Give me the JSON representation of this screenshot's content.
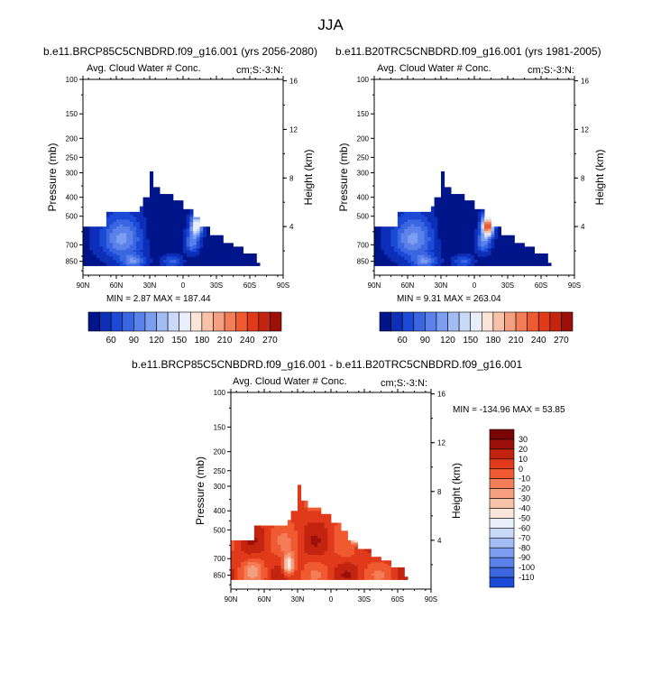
{
  "figure_title": "JJA",
  "palette": {
    "blues": [
      "#00158a",
      "#0d2fb8",
      "#1a4ad6",
      "#3a66e0",
      "#5a82ea",
      "#7d9ef0",
      "#a3bdf4",
      "#c9d9f8",
      "#e8eefa"
    ],
    "reds": [
      "#fbe4d8",
      "#f7c2a8",
      "#f4a080",
      "#f27d56",
      "#ef5a30",
      "#e03a1a",
      "#c22410",
      "#9b1008",
      "#7a0404"
    ]
  },
  "chart_data": [
    {
      "type": "heatmap",
      "id": "left",
      "title": "b.e11.BRCP85C5CNBDRD.f09_g16.001 (yrs 2056-2080)",
      "subtitle_left": "Avg. Cloud Water # Conc.",
      "subtitle_right": "cm;S:-3:N:",
      "xlabel": "",
      "ylabel": "Pressure (mb)",
      "ylabel_right": "Height (km)",
      "x_ticks": [
        "90N",
        "60N",
        "30N",
        "0",
        "30S",
        "60S",
        "90S"
      ],
      "x_range": [
        90,
        -90
      ],
      "y_ticks": [
        100,
        150,
        200,
        250,
        300,
        400,
        500,
        700,
        850
      ],
      "y_range": [
        100,
        1000
      ],
      "y_right_ticks": [
        16,
        12,
        8,
        4
      ],
      "min_label": "MIN =   2.87   MAX =  187.44",
      "colorbar_ticks": [
        60,
        90,
        120,
        150,
        180,
        210,
        240,
        270
      ],
      "colorbar_range": [
        30,
        300
      ]
    },
    {
      "type": "heatmap",
      "id": "right",
      "title": "b.e11.B20TRC5CNBDRD.f09_g16.001 (yrs 1981-2005)",
      "subtitle_left": "Avg. Cloud Water # Conc.",
      "subtitle_right": "cm;S:-3:N:",
      "xlabel": "",
      "ylabel": "Pressure (mb)",
      "ylabel_right": "Height (km)",
      "x_ticks": [
        "90N",
        "60N",
        "30N",
        "0",
        "30S",
        "60S",
        "90S"
      ],
      "x_range": [
        90,
        -90
      ],
      "y_ticks": [
        100,
        150,
        200,
        250,
        300,
        400,
        500,
        700,
        850
      ],
      "y_range": [
        100,
        1000
      ],
      "y_right_ticks": [
        16,
        12,
        8,
        4
      ],
      "min_label": "MIN =   9.31   MAX =  263.04",
      "colorbar_ticks": [
        60,
        90,
        120,
        150,
        180,
        210,
        240,
        270
      ],
      "colorbar_range": [
        30,
        300
      ]
    },
    {
      "type": "heatmap",
      "id": "diff",
      "title": "b.e11.BRCP85C5CNBDRD.f09_g16.001 - b.e11.B20TRC5CNBDRD.f09_g16.001",
      "subtitle_left": "Avg. Cloud Water # Conc.",
      "subtitle_right": "cm;S:-3:N:",
      "xlabel": "",
      "ylabel": "Pressure (mb)",
      "ylabel_right": "Height (km)",
      "x_ticks": [
        "90N",
        "60N",
        "30N",
        "0",
        "30S",
        "60S",
        "90S"
      ],
      "x_range": [
        90,
        -90
      ],
      "y_ticks": [
        100,
        150,
        200,
        250,
        300,
        400,
        500,
        700,
        850
      ],
      "y_range": [
        100,
        1000
      ],
      "y_right_ticks": [
        16,
        12,
        8,
        4
      ],
      "min_label": "MIN = -134.96   MAX =  53.85",
      "colorbar_ticks": [
        30,
        20,
        10,
        0,
        -10,
        -20,
        -30,
        -40,
        -50,
        -60,
        -70,
        -80,
        -90,
        -100,
        -110
      ],
      "colorbar_range": [
        -120,
        40
      ]
    }
  ]
}
